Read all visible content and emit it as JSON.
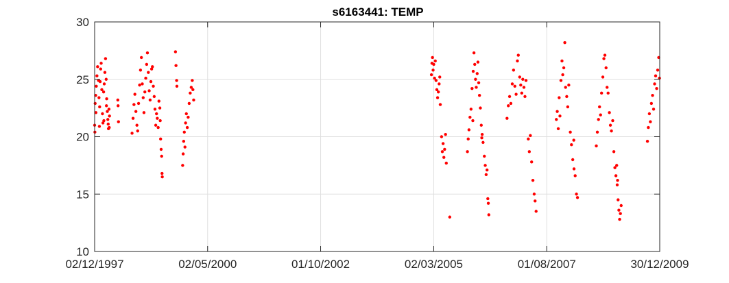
{
  "chart_data": {
    "type": "scatter",
    "title": "s6163441: TEMP",
    "xlabel": "",
    "ylabel": "",
    "x_axis_type": "date",
    "xlim": [
      "1997-12-02",
      "2009-12-30"
    ],
    "ylim": [
      10,
      30
    ],
    "x_ticks": [
      "1997-12-02",
      "2000-05-02",
      "2002-10-01",
      "2005-03-02",
      "2007-08-01",
      "2009-12-30"
    ],
    "x_tick_labels": [
      "02/12/1997",
      "02/05/2000",
      "01/10/2002",
      "02/03/2005",
      "01/08/2007",
      "30/12/2009"
    ],
    "y_ticks": [
      10,
      15,
      20,
      25,
      30
    ],
    "y_tick_labels": [
      "10",
      "15",
      "20",
      "25",
      "30"
    ],
    "grid": true,
    "legend": "none",
    "marker_color": "#ff0000",
    "series": [
      {
        "points": [
          [
            "1997-12-02",
            21.0
          ],
          [
            "1997-12-06",
            22.9
          ],
          [
            "1997-12-10",
            23.6
          ],
          [
            "1997-12-15",
            24.4
          ],
          [
            "1997-12-20",
            25.3
          ],
          [
            "1997-12-25",
            26.1
          ],
          [
            "1998-01-01",
            24.9
          ],
          [
            "1998-01-05",
            23.4
          ],
          [
            "1998-01-10",
            22.6
          ],
          [
            "1998-01-14",
            24.8
          ],
          [
            "1998-01-18",
            25.9
          ],
          [
            "1998-01-22",
            26.4
          ],
          [
            "1998-01-27",
            24.1
          ],
          [
            "1998-02-01",
            22.0
          ],
          [
            "1998-02-05",
            21.2
          ],
          [
            "1998-02-10",
            23.9
          ],
          [
            "1998-02-15",
            24.6
          ],
          [
            "1998-02-20",
            25.6
          ],
          [
            "1998-02-25",
            26.8
          ],
          [
            "1998-03-02",
            25.0
          ],
          [
            "1998-03-06",
            23.3
          ],
          [
            "1998-03-11",
            22.2
          ],
          [
            "1998-03-15",
            21.5
          ],
          [
            "1998-03-20",
            20.7
          ],
          [
            "1998-03-24",
            22.4
          ],
          [
            "1998-03-28",
            21.8
          ],
          [
            "1997-12-04",
            20.4
          ],
          [
            "1997-12-12",
            22.1
          ],
          [
            "1998-01-08",
            20.9
          ],
          [
            "1998-02-12",
            21.4
          ],
          [
            "1998-03-04",
            22.7
          ],
          [
            "1998-03-18",
            21.1
          ],
          [
            "1998-03-26",
            20.8
          ],
          [
            "1998-06-01",
            23.2
          ],
          [
            "1998-06-03",
            22.7
          ],
          [
            "1998-06-06",
            21.3
          ],
          [
            "1998-09-20",
            20.3
          ],
          [
            "1998-09-28",
            21.6
          ],
          [
            "1998-10-05",
            22.8
          ],
          [
            "1998-10-12",
            23.7
          ],
          [
            "1998-10-20",
            22.2
          ],
          [
            "1998-10-28",
            21.0
          ],
          [
            "1998-11-03",
            20.5
          ],
          [
            "1998-11-10",
            22.9
          ],
          [
            "1998-11-18",
            24.5
          ],
          [
            "1998-11-25",
            25.8
          ],
          [
            "1998-12-02",
            26.9
          ],
          [
            "1998-12-09",
            24.6
          ],
          [
            "1998-12-16",
            23.4
          ],
          [
            "1998-12-22",
            22.1
          ],
          [
            "1998-12-29",
            23.9
          ],
          [
            "1999-01-05",
            25.1
          ],
          [
            "1999-01-12",
            26.3
          ],
          [
            "1999-01-18",
            27.3
          ],
          [
            "1999-01-25",
            25.6
          ],
          [
            "1999-02-01",
            24.0
          ],
          [
            "1999-02-08",
            23.2
          ],
          [
            "1999-02-14",
            24.8
          ],
          [
            "1999-02-20",
            25.9
          ],
          [
            "1999-02-26",
            26.1
          ],
          [
            "1999-03-05",
            24.4
          ],
          [
            "1999-03-12",
            23.5
          ],
          [
            "1999-03-18",
            22.4
          ],
          [
            "1999-03-24",
            21.0
          ],
          [
            "1999-03-30",
            22.0
          ],
          [
            "1999-04-05",
            21.6
          ],
          [
            "1999-04-12",
            20.8
          ],
          [
            "1999-04-18",
            23.1
          ],
          [
            "1999-04-25",
            22.5
          ],
          [
            "1999-05-01",
            19.8
          ],
          [
            "1999-05-05",
            18.9
          ],
          [
            "1999-05-09",
            18.3
          ],
          [
            "1999-05-12",
            16.8
          ],
          [
            "1999-05-14",
            16.5
          ],
          [
            "1999-04-28",
            21.4
          ],
          [
            "1999-08-25",
            27.4
          ],
          [
            "1999-08-29",
            26.2
          ],
          [
            "1999-09-03",
            24.9
          ],
          [
            "1999-09-05",
            24.4
          ],
          [
            "1999-10-20",
            17.5
          ],
          [
            "1999-10-24",
            18.5
          ],
          [
            "1999-10-28",
            19.6
          ],
          [
            "1999-11-02",
            20.4
          ],
          [
            "1999-11-07",
            19.1
          ],
          [
            "1999-11-12",
            21.2
          ],
          [
            "1999-11-18",
            22.0
          ],
          [
            "1999-11-25",
            20.8
          ],
          [
            "1999-12-02",
            21.7
          ],
          [
            "1999-12-10",
            22.9
          ],
          [
            "1999-12-18",
            23.8
          ],
          [
            "1999-12-26",
            24.3
          ],
          [
            "2000-01-03",
            24.9
          ],
          [
            "2000-01-08",
            24.1
          ],
          [
            "2000-01-14",
            23.2
          ],
          [
            "2005-02-12",
            25.4
          ],
          [
            "2005-02-16",
            26.4
          ],
          [
            "2005-02-20",
            26.9
          ],
          [
            "2005-02-25",
            25.8
          ],
          [
            "2005-03-02",
            26.3
          ],
          [
            "2005-03-08",
            25.1
          ],
          [
            "2005-03-14",
            26.6
          ],
          [
            "2005-03-20",
            24.9
          ],
          [
            "2005-03-26",
            24.1
          ],
          [
            "2005-04-01",
            23.4
          ],
          [
            "2005-04-07",
            23.9
          ],
          [
            "2005-04-13",
            24.6
          ],
          [
            "2005-04-18",
            25.2
          ],
          [
            "2005-04-22",
            22.8
          ],
          [
            "2005-05-02",
            20.0
          ],
          [
            "2005-05-08",
            18.7
          ],
          [
            "2005-05-14",
            19.4
          ],
          [
            "2005-05-20",
            18.2
          ],
          [
            "2005-05-26",
            18.9
          ],
          [
            "2005-06-02",
            20.2
          ],
          [
            "2005-06-08",
            17.7
          ],
          [
            "2005-07-05",
            13.0
          ],
          [
            "2005-11-20",
            18.7
          ],
          [
            "2005-11-26",
            19.8
          ],
          [
            "2005-12-02",
            20.6
          ],
          [
            "2005-12-10",
            21.7
          ],
          [
            "2005-12-18",
            22.4
          ],
          [
            "2005-12-26",
            24.2
          ],
          [
            "2006-01-04",
            25.7
          ],
          [
            "2006-01-10",
            27.3
          ],
          [
            "2006-01-16",
            26.3
          ],
          [
            "2006-01-22",
            25.0
          ],
          [
            "2006-01-28",
            24.3
          ],
          [
            "2006-02-04",
            25.5
          ],
          [
            "2006-02-10",
            26.5
          ],
          [
            "2006-02-16",
            24.7
          ],
          [
            "2006-02-22",
            23.6
          ],
          [
            "2006-03-01",
            22.5
          ],
          [
            "2006-03-08",
            21.0
          ],
          [
            "2006-03-15",
            20.2
          ],
          [
            "2006-03-22",
            19.5
          ],
          [
            "2006-04-01",
            18.3
          ],
          [
            "2006-04-08",
            17.5
          ],
          [
            "2006-04-15",
            16.7
          ],
          [
            "2006-04-22",
            17.1
          ],
          [
            "2006-04-28",
            14.6
          ],
          [
            "2006-05-02",
            14.2
          ],
          [
            "2006-05-06",
            13.2
          ],
          [
            "2006-01-01",
            21.4
          ],
          [
            "2006-03-12",
            19.9
          ],
          [
            "2006-09-25",
            21.6
          ],
          [
            "2006-10-05",
            22.7
          ],
          [
            "2006-10-15",
            23.5
          ],
          [
            "2006-10-25",
            22.9
          ],
          [
            "2006-11-05",
            24.6
          ],
          [
            "2006-11-15",
            25.8
          ],
          [
            "2006-11-25",
            24.4
          ],
          [
            "2006-12-05",
            23.7
          ],
          [
            "2006-12-15",
            26.6
          ],
          [
            "2006-12-22",
            27.1
          ],
          [
            "2007-01-02",
            25.2
          ],
          [
            "2007-01-10",
            24.5
          ],
          [
            "2007-01-18",
            23.8
          ],
          [
            "2007-01-26",
            25.0
          ],
          [
            "2007-02-04",
            24.3
          ],
          [
            "2007-02-12",
            23.5
          ],
          [
            "2007-02-20",
            24.9
          ],
          [
            "2007-03-10",
            19.8
          ],
          [
            "2007-03-18",
            18.7
          ],
          [
            "2007-03-26",
            20.1
          ],
          [
            "2007-04-05",
            17.8
          ],
          [
            "2007-04-15",
            16.2
          ],
          [
            "2007-04-25",
            15.0
          ],
          [
            "2007-05-02",
            14.4
          ],
          [
            "2007-05-10",
            13.5
          ],
          [
            "2007-10-15",
            21.5
          ],
          [
            "2007-10-22",
            22.2
          ],
          [
            "2007-10-30",
            20.7
          ],
          [
            "2007-11-06",
            23.4
          ],
          [
            "2007-11-12",
            21.8
          ],
          [
            "2007-11-20",
            24.9
          ],
          [
            "2007-11-28",
            26.6
          ],
          [
            "2007-12-04",
            25.4
          ],
          [
            "2007-12-12",
            26.0
          ],
          [
            "2007-12-20",
            28.2
          ],
          [
            "2007-12-26",
            24.3
          ],
          [
            "2008-01-04",
            23.5
          ],
          [
            "2008-01-12",
            22.6
          ],
          [
            "2008-01-20",
            24.5
          ],
          [
            "2008-02-01",
            20.4
          ],
          [
            "2008-02-10",
            19.3
          ],
          [
            "2008-02-20",
            18.0
          ],
          [
            "2008-03-01",
            17.2
          ],
          [
            "2008-03-10",
            16.6
          ],
          [
            "2008-03-20",
            15.0
          ],
          [
            "2008-03-28",
            14.7
          ],
          [
            "2008-02-28",
            19.7
          ],
          [
            "2008-08-22",
            19.2
          ],
          [
            "2008-08-30",
            20.4
          ],
          [
            "2008-09-08",
            21.5
          ],
          [
            "2008-09-16",
            22.6
          ],
          [
            "2008-09-24",
            21.9
          ],
          [
            "2008-10-02",
            23.8
          ],
          [
            "2008-10-12",
            25.2
          ],
          [
            "2008-10-20",
            26.8
          ],
          [
            "2008-10-28",
            27.1
          ],
          [
            "2008-11-06",
            26.0
          ],
          [
            "2008-11-14",
            24.3
          ],
          [
            "2008-11-22",
            23.8
          ],
          [
            "2008-12-02",
            22.1
          ],
          [
            "2008-12-10",
            21.0
          ],
          [
            "2008-12-18",
            20.5
          ],
          [
            "2008-12-28",
            21.4
          ],
          [
            "2009-01-06",
            18.7
          ],
          [
            "2009-01-14",
            17.3
          ],
          [
            "2009-01-22",
            16.6
          ],
          [
            "2009-02-01",
            15.8
          ],
          [
            "2009-02-08",
            14.5
          ],
          [
            "2009-02-14",
            13.6
          ],
          [
            "2009-02-20",
            12.8
          ],
          [
            "2009-02-26",
            13.3
          ],
          [
            "2009-03-04",
            14.0
          ],
          [
            "2009-01-28",
            17.5
          ],
          [
            "2009-02-04",
            16.2
          ],
          [
            "2009-09-25",
            19.6
          ],
          [
            "2009-10-02",
            20.8
          ],
          [
            "2009-10-10",
            22.0
          ],
          [
            "2009-10-18",
            21.3
          ],
          [
            "2009-10-26",
            22.9
          ],
          [
            "2009-11-04",
            23.6
          ],
          [
            "2009-11-12",
            22.4
          ],
          [
            "2009-11-20",
            24.6
          ],
          [
            "2009-11-28",
            25.3
          ],
          [
            "2009-12-06",
            24.2
          ],
          [
            "2009-12-14",
            25.8
          ],
          [
            "2009-12-22",
            26.9
          ],
          [
            "2009-12-28",
            25.1
          ]
        ]
      }
    ]
  }
}
